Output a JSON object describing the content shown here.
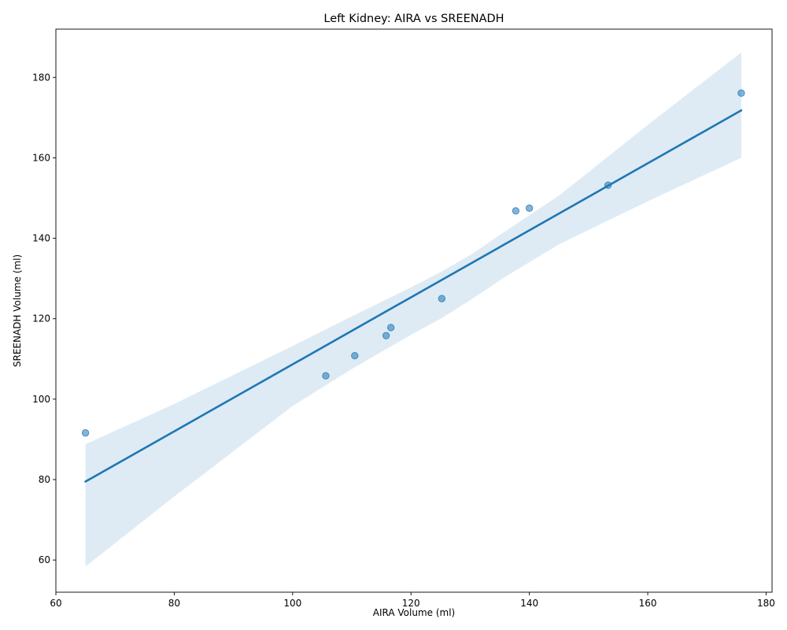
{
  "chart_data": {
    "type": "scatter",
    "title": "Left Kidney: AIRA vs SREENADH",
    "xlabel": "AIRA Volume (ml)",
    "ylabel": "SREENADH Volume (ml)",
    "xlim": [
      60,
      181
    ],
    "ylim": [
      52,
      192
    ],
    "xticks": [
      60,
      80,
      100,
      120,
      140,
      160,
      180
    ],
    "yticks": [
      60,
      80,
      100,
      120,
      140,
      160,
      180
    ],
    "grid": false,
    "points": {
      "x": [
        65.0,
        105.6,
        110.5,
        115.8,
        116.6,
        125.2,
        137.7,
        140.0,
        153.3,
        175.8
      ],
      "y": [
        91.6,
        105.8,
        110.8,
        115.8,
        117.8,
        125.0,
        146.8,
        147.5,
        153.2,
        176.1
      ]
    },
    "regression": {
      "x": [
        65.0,
        175.8
      ],
      "y": [
        79.5,
        171.8
      ]
    },
    "confidence_band": {
      "x": [
        65.0,
        80.0,
        100.0,
        110.0,
        120.0,
        125.0,
        130.0,
        136.0,
        145.0,
        160.0,
        175.8
      ],
      "upper": [
        88.8,
        98.8,
        113.2,
        120.6,
        127.8,
        131.6,
        135.8,
        141.8,
        150.6,
        168.2,
        186.2
      ],
      "lower": [
        58.4,
        75.8,
        98.3,
        107.5,
        116.0,
        120.0,
        124.6,
        130.5,
        138.5,
        149.2,
        160.0
      ]
    },
    "colors": {
      "points": "#1f77b4",
      "line": "#1f77b4",
      "band": "#1f77b4"
    }
  }
}
